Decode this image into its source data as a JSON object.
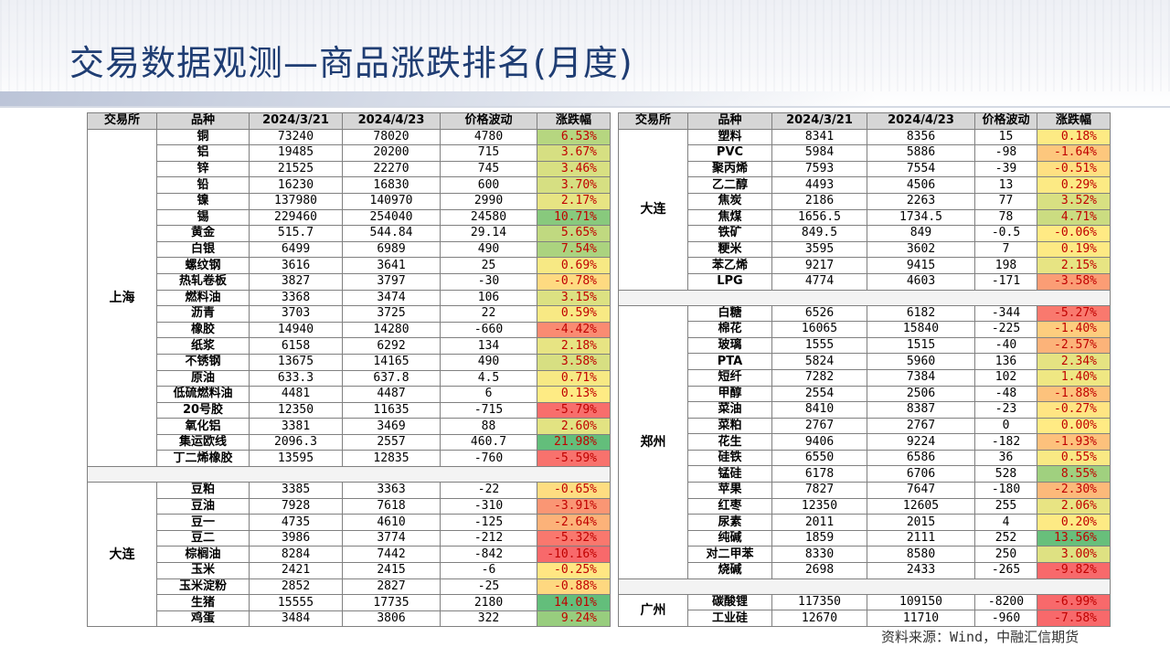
{
  "title": "交易数据观测—商品涨跌排名(月度)",
  "source": "资料来源：Wind，中融汇信期货",
  "headers": [
    "交易所",
    "品种",
    "2024/3/21",
    "2024/4/23",
    "价格波动",
    "涨跌幅"
  ],
  "left": {
    "shanghai": {
      "exchange": "上海",
      "rows": [
        {
          "name": "铜",
          "p1": "73240",
          "p2": "78020",
          "diff": "4780",
          "chg": "6.53%",
          "pct": 6.53
        },
        {
          "name": "铝",
          "p1": "19485",
          "p2": "20200",
          "diff": "715",
          "chg": "3.67%",
          "pct": 3.67
        },
        {
          "name": "锌",
          "p1": "21525",
          "p2": "22270",
          "diff": "745",
          "chg": "3.46%",
          "pct": 3.46
        },
        {
          "name": "铅",
          "p1": "16230",
          "p2": "16830",
          "diff": "600",
          "chg": "3.70%",
          "pct": 3.7
        },
        {
          "name": "镍",
          "p1": "137980",
          "p2": "140970",
          "diff": "2990",
          "chg": "2.17%",
          "pct": 2.17
        },
        {
          "name": "锡",
          "p1": "229460",
          "p2": "254040",
          "diff": "24580",
          "chg": "10.71%",
          "pct": 10.71
        },
        {
          "name": "黄金",
          "p1": "515.7",
          "p2": "544.84",
          "diff": "29.14",
          "chg": "5.65%",
          "pct": 5.65
        },
        {
          "name": "白银",
          "p1": "6499",
          "p2": "6989",
          "diff": "490",
          "chg": "7.54%",
          "pct": 7.54
        },
        {
          "name": "螺纹钢",
          "p1": "3616",
          "p2": "3641",
          "diff": "25",
          "chg": "0.69%",
          "pct": 0.69
        },
        {
          "name": "热轧卷板",
          "p1": "3827",
          "p2": "3797",
          "diff": "-30",
          "chg": "-0.78%",
          "pct": -0.78
        },
        {
          "name": "燃料油",
          "p1": "3368",
          "p2": "3474",
          "diff": "106",
          "chg": "3.15%",
          "pct": 3.15
        },
        {
          "name": "沥青",
          "p1": "3703",
          "p2": "3725",
          "diff": "22",
          "chg": "0.59%",
          "pct": 0.59
        },
        {
          "name": "橡胶",
          "p1": "14940",
          "p2": "14280",
          "diff": "-660",
          "chg": "-4.42%",
          "pct": -4.42
        },
        {
          "name": "纸浆",
          "p1": "6158",
          "p2": "6292",
          "diff": "134",
          "chg": "2.18%",
          "pct": 2.18
        },
        {
          "name": "不锈钢",
          "p1": "13675",
          "p2": "14165",
          "diff": "490",
          "chg": "3.58%",
          "pct": 3.58
        },
        {
          "name": "原油",
          "p1": "633.3",
          "p2": "637.8",
          "diff": "4.5",
          "chg": "0.71%",
          "pct": 0.71
        },
        {
          "name": "低硫燃料油",
          "p1": "4481",
          "p2": "4487",
          "diff": "6",
          "chg": "0.13%",
          "pct": 0.13
        },
        {
          "name": "20号胶",
          "p1": "12350",
          "p2": "11635",
          "diff": "-715",
          "chg": "-5.79%",
          "pct": -5.79
        },
        {
          "name": "氧化铝",
          "p1": "3381",
          "p2": "3469",
          "diff": "88",
          "chg": "2.60%",
          "pct": 2.6
        },
        {
          "name": "集运欧线",
          "p1": "2096.3",
          "p2": "2557",
          "diff": "460.7",
          "chg": "21.98%",
          "pct": 21.98
        },
        {
          "name": "丁二烯橡胶",
          "p1": "13595",
          "p2": "12835",
          "diff": "-760",
          "chg": "-5.59%",
          "pct": -5.59
        }
      ]
    },
    "dalian": {
      "exchange": "大连",
      "rows": [
        {
          "name": "豆粕",
          "p1": "3385",
          "p2": "3363",
          "diff": "-22",
          "chg": "-0.65%",
          "pct": -0.65
        },
        {
          "name": "豆油",
          "p1": "7928",
          "p2": "7618",
          "diff": "-310",
          "chg": "-3.91%",
          "pct": -3.91
        },
        {
          "name": "豆一",
          "p1": "4735",
          "p2": "4610",
          "diff": "-125",
          "chg": "-2.64%",
          "pct": -2.64
        },
        {
          "name": "豆二",
          "p1": "3986",
          "p2": "3774",
          "diff": "-212",
          "chg": "-5.32%",
          "pct": -5.32
        },
        {
          "name": "棕榈油",
          "p1": "8284",
          "p2": "7442",
          "diff": "-842",
          "chg": "-10.16%",
          "pct": -10.16
        },
        {
          "name": "玉米",
          "p1": "2421",
          "p2": "2415",
          "diff": "-6",
          "chg": "-0.25%",
          "pct": -0.25
        },
        {
          "name": "玉米淀粉",
          "p1": "2852",
          "p2": "2827",
          "diff": "-25",
          "chg": "-0.88%",
          "pct": -0.88
        },
        {
          "name": "生猪",
          "p1": "15555",
          "p2": "17735",
          "diff": "2180",
          "chg": "14.01%",
          "pct": 14.01
        },
        {
          "name": "鸡蛋",
          "p1": "3484",
          "p2": "3806",
          "diff": "322",
          "chg": "9.24%",
          "pct": 9.24
        }
      ]
    }
  },
  "right": {
    "dalian": {
      "exchange": "大连",
      "rows": [
        {
          "name": "塑料",
          "p1": "8341",
          "p2": "8356",
          "diff": "15",
          "chg": "0.18%",
          "pct": 0.18
        },
        {
          "name": "PVC",
          "p1": "5984",
          "p2": "5886",
          "diff": "-98",
          "chg": "-1.64%",
          "pct": -1.64
        },
        {
          "name": "聚丙烯",
          "p1": "7593",
          "p2": "7554",
          "diff": "-39",
          "chg": "-0.51%",
          "pct": -0.51
        },
        {
          "name": "乙二醇",
          "p1": "4493",
          "p2": "4506",
          "diff": "13",
          "chg": "0.29%",
          "pct": 0.29
        },
        {
          "name": "焦炭",
          "p1": "2186",
          "p2": "2263",
          "diff": "77",
          "chg": "3.52%",
          "pct": 3.52
        },
        {
          "name": "焦煤",
          "p1": "1656.5",
          "p2": "1734.5",
          "diff": "78",
          "chg": "4.71%",
          "pct": 4.71
        },
        {
          "name": "铁矿",
          "p1": "849.5",
          "p2": "849",
          "diff": "-0.5",
          "chg": "-0.06%",
          "pct": -0.06
        },
        {
          "name": "粳米",
          "p1": "3595",
          "p2": "3602",
          "diff": "7",
          "chg": "0.19%",
          "pct": 0.19
        },
        {
          "name": "苯乙烯",
          "p1": "9217",
          "p2": "9415",
          "diff": "198",
          "chg": "2.15%",
          "pct": 2.15
        },
        {
          "name": "LPG",
          "p1": "4774",
          "p2": "4603",
          "diff": "-171",
          "chg": "-3.58%",
          "pct": -3.58
        }
      ]
    },
    "zhengzhou": {
      "exchange": "郑州",
      "rows": [
        {
          "name": "白糖",
          "p1": "6526",
          "p2": "6182",
          "diff": "-344",
          "chg": "-5.27%",
          "pct": -5.27
        },
        {
          "name": "棉花",
          "p1": "16065",
          "p2": "15840",
          "diff": "-225",
          "chg": "-1.40%",
          "pct": -1.4
        },
        {
          "name": "玻璃",
          "p1": "1555",
          "p2": "1515",
          "diff": "-40",
          "chg": "-2.57%",
          "pct": -2.57
        },
        {
          "name": "PTA",
          "p1": "5824",
          "p2": "5960",
          "diff": "136",
          "chg": "2.34%",
          "pct": 2.34
        },
        {
          "name": "短纤",
          "p1": "7282",
          "p2": "7384",
          "diff": "102",
          "chg": "1.40%",
          "pct": 1.4
        },
        {
          "name": "甲醇",
          "p1": "2554",
          "p2": "2506",
          "diff": "-48",
          "chg": "-1.88%",
          "pct": -1.88
        },
        {
          "name": "菜油",
          "p1": "8410",
          "p2": "8387",
          "diff": "-23",
          "chg": "-0.27%",
          "pct": -0.27
        },
        {
          "name": "菜粕",
          "p1": "2767",
          "p2": "2767",
          "diff": "0",
          "chg": "0.00%",
          "pct": 0.0
        },
        {
          "name": "花生",
          "p1": "9406",
          "p2": "9224",
          "diff": "-182",
          "chg": "-1.93%",
          "pct": -1.93
        },
        {
          "name": "硅铁",
          "p1": "6550",
          "p2": "6586",
          "diff": "36",
          "chg": "0.55%",
          "pct": 0.55
        },
        {
          "name": "锰硅",
          "p1": "6178",
          "p2": "6706",
          "diff": "528",
          "chg": "8.55%",
          "pct": 8.55
        },
        {
          "name": "苹果",
          "p1": "7827",
          "p2": "7647",
          "diff": "-180",
          "chg": "-2.30%",
          "pct": -2.3
        },
        {
          "name": "红枣",
          "p1": "12350",
          "p2": "12605",
          "diff": "255",
          "chg": "2.06%",
          "pct": 2.06
        },
        {
          "name": "尿素",
          "p1": "2011",
          "p2": "2015",
          "diff": "4",
          "chg": "0.20%",
          "pct": 0.2
        },
        {
          "name": "纯碱",
          "p1": "1859",
          "p2": "2111",
          "diff": "252",
          "chg": "13.56%",
          "pct": 13.56
        },
        {
          "name": "对二甲苯",
          "p1": "8330",
          "p2": "8580",
          "diff": "250",
          "chg": "3.00%",
          "pct": 3.0
        },
        {
          "name": "烧碱",
          "p1": "2698",
          "p2": "2433",
          "diff": "-265",
          "chg": "-9.82%",
          "pct": -9.82
        }
      ]
    },
    "guangzhou": {
      "exchange": "广州",
      "rows": [
        {
          "name": "碳酸锂",
          "p1": "117350",
          "p2": "109150",
          "diff": "-8200",
          "chg": "-6.99%",
          "pct": -6.99
        },
        {
          "name": "工业硅",
          "p1": "12670",
          "p2": "11710",
          "diff": "-960",
          "chg": "-7.58%",
          "pct": -7.58
        }
      ]
    }
  },
  "colors": {
    "title": "#1f3d73",
    "header_bg": "#d6d6d6",
    "scale_low": "#f8696b",
    "scale_mid": "#ffeb84",
    "scale_high": "#63be7b",
    "change_text": "#c00000"
  }
}
